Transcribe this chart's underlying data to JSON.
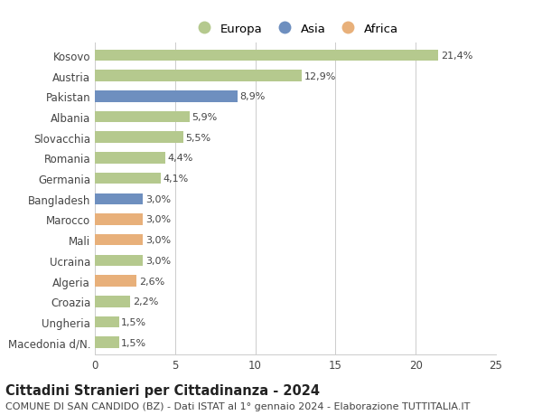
{
  "countries": [
    "Kosovo",
    "Austria",
    "Pakistan",
    "Albania",
    "Slovacchia",
    "Romania",
    "Germania",
    "Bangladesh",
    "Marocco",
    "Mali",
    "Ucraina",
    "Algeria",
    "Croazia",
    "Ungheria",
    "Macedonia d/N."
  ],
  "values": [
    21.4,
    12.9,
    8.9,
    5.9,
    5.5,
    4.4,
    4.1,
    3.0,
    3.0,
    3.0,
    3.0,
    2.6,
    2.2,
    1.5,
    1.5
  ],
  "labels": [
    "21,4%",
    "12,9%",
    "8,9%",
    "5,9%",
    "5,5%",
    "4,4%",
    "4,1%",
    "3,0%",
    "3,0%",
    "3,0%",
    "3,0%",
    "2,6%",
    "2,2%",
    "1,5%",
    "1,5%"
  ],
  "continents": [
    "Europa",
    "Europa",
    "Asia",
    "Europa",
    "Europa",
    "Europa",
    "Europa",
    "Asia",
    "Africa",
    "Africa",
    "Europa",
    "Africa",
    "Europa",
    "Europa",
    "Europa"
  ],
  "colors": {
    "Europa": "#b5c98e",
    "Asia": "#6e8fbf",
    "Africa": "#e8b07a"
  },
  "title": "Cittadini Stranieri per Cittadinanza - 2024",
  "subtitle": "COMUNE DI SAN CANDIDO (BZ) - Dati ISTAT al 1° gennaio 2024 - Elaborazione TUTTITALIA.IT",
  "xlim": [
    0,
    25
  ],
  "xticks": [
    0,
    5,
    10,
    15,
    20,
    25
  ],
  "background_color": "#ffffff",
  "grid_color": "#cccccc",
  "bar_height": 0.55,
  "title_fontsize": 10.5,
  "subtitle_fontsize": 8,
  "tick_fontsize": 8.5,
  "label_fontsize": 8,
  "legend_fontsize": 9.5
}
